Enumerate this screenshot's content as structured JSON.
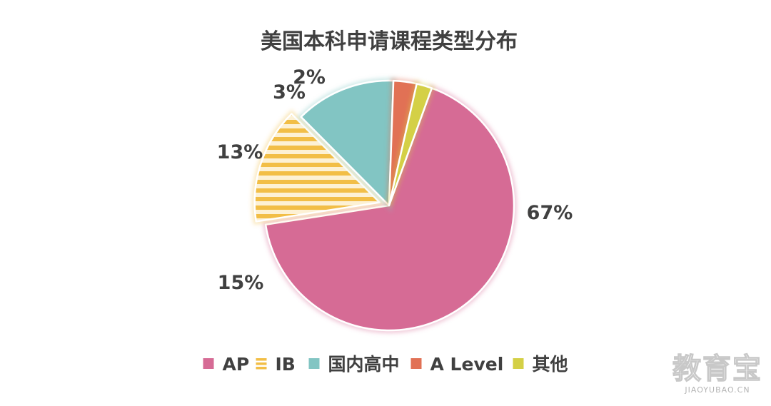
{
  "chart_data": {
    "type": "pie",
    "title": "美国本科申请课程类型分布",
    "categories": [
      "AP",
      "IB",
      "国内高中",
      "A Level",
      "其他"
    ],
    "values": [
      67,
      15,
      13,
      3,
      2
    ],
    "value_labels": [
      "67%",
      "15%",
      "13%",
      "3%",
      "2%"
    ],
    "colors": [
      "#d66b95",
      "#f2be46",
      "#82c5c3",
      "#e17155",
      "#d4d046"
    ],
    "exploded": [
      "IB"
    ],
    "patterns": {
      "IB": "horizontal-stripes"
    },
    "legend_position": "bottom",
    "legend_markers": [
      "■",
      "〓",
      "■",
      "■",
      "■"
    ]
  },
  "watermark": {
    "brand": "教育宝",
    "url": "JIAOYUBAO.CN"
  }
}
